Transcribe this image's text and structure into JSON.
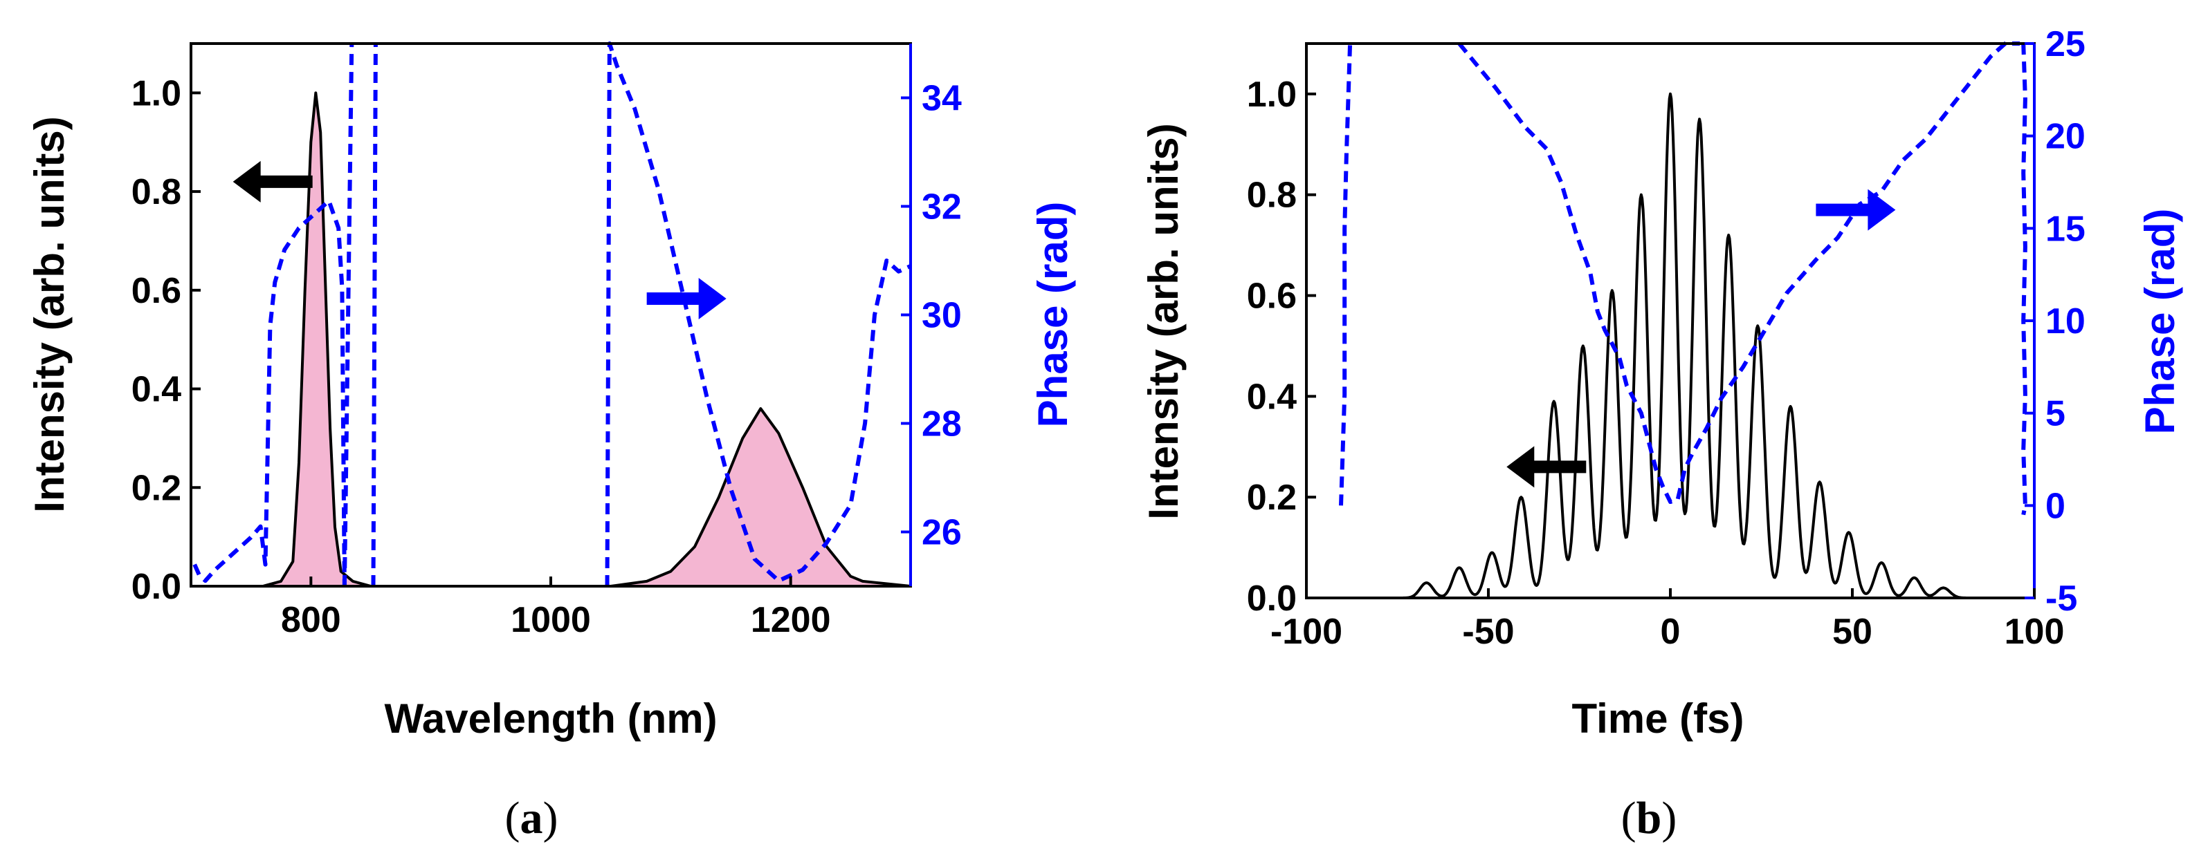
{
  "chart_data": [
    {
      "type": "line",
      "panel_label": "a",
      "xlabel": "Wavelength (nm)",
      "ylabel_left": "Intensity (arb. units)",
      "ylabel_right": "Phase (rad)",
      "xlim": [
        700,
        1300
      ],
      "ylim_left": [
        0,
        1.1
      ],
      "ylim_right": [
        25,
        35
      ],
      "xticks": [
        800,
        1000,
        1200
      ],
      "yticks_left": [
        "0.0",
        "0.2",
        "0.4",
        "0.6",
        "0.8",
        "1.0"
      ],
      "yticks_right": [
        "26",
        "28",
        "30",
        "32",
        "34"
      ],
      "arrows": [
        {
          "direction": "left",
          "color": "#000000",
          "x": 735,
          "y": 0.82,
          "axis": "left"
        },
        {
          "direction": "right",
          "color": "#0000ff",
          "x": 1080,
          "y": 30.3,
          "axis": "right"
        }
      ],
      "series": [
        {
          "name": "Intensity",
          "axis": "left",
          "style": "solid",
          "color": "#000000",
          "fill": "#f4b6d2",
          "x": [
            700,
            760,
            775,
            785,
            790,
            795,
            800,
            804,
            808,
            812,
            816,
            820,
            825,
            835,
            850,
            1050,
            1080,
            1100,
            1120,
            1140,
            1160,
            1175,
            1190,
            1210,
            1230,
            1250,
            1260,
            1300
          ],
          "y": [
            0,
            0,
            0.01,
            0.05,
            0.25,
            0.6,
            0.9,
            1.0,
            0.92,
            0.62,
            0.32,
            0.12,
            0.03,
            0.01,
            0,
            0,
            0.01,
            0.03,
            0.08,
            0.18,
            0.3,
            0.36,
            0.31,
            0.2,
            0.08,
            0.02,
            0.01,
            0
          ]
        },
        {
          "name": "Phase",
          "axis": "right",
          "style": "dashed",
          "color": "#0000ff",
          "segments": [
            {
              "x": [
                703,
                707,
                712,
                720,
                735,
                750,
                758,
                762,
                766,
                770,
                778,
                790,
                800,
                815,
                823,
                826,
                828
              ],
              "y": [
                25.4,
                25.2,
                25.1,
                25.3,
                25.6,
                25.9,
                26.1,
                25.4,
                29.8,
                30.6,
                31.2,
                31.6,
                31.8,
                32.1,
                31.6,
                30.5,
                25.0
              ]
            },
            {
              "x": [
                828,
                834
              ],
              "y": [
                25.0,
                35.0
              ]
            },
            {
              "x": [
                852,
                854
              ],
              "y": [
                25.0,
                35.0
              ]
            },
            {
              "x": [
                1047,
                1049,
                1055,
                1070,
                1090,
                1110,
                1130,
                1150,
                1170,
                1190,
                1210,
                1230,
                1250,
                1262,
                1270,
                1280,
                1290,
                1300
              ],
              "y": [
                25.0,
                35.0,
                34.6,
                33.8,
                32.3,
                30.4,
                28.5,
                26.8,
                25.5,
                25.1,
                25.3,
                25.8,
                26.5,
                28.0,
                30.0,
                31.0,
                30.8,
                30.9
              ]
            }
          ]
        }
      ]
    },
    {
      "type": "line",
      "panel_label": "b",
      "xlabel": "Time (fs)",
      "ylabel_left": "Intensity (arb. units)",
      "ylabel_right": "Phase (rad)",
      "xlim": [
        -100,
        100
      ],
      "ylim_left": [
        0,
        1.1
      ],
      "ylim_right": [
        -5,
        25
      ],
      "xticks": [
        "-100",
        "-50",
        "0",
        "50",
        "100"
      ],
      "yticks_left": [
        "0.0",
        "0.2",
        "0.4",
        "0.6",
        "0.8",
        "1.0"
      ],
      "yticks_right": [
        "-5",
        "0",
        "5",
        "10",
        "15",
        "20",
        "25"
      ],
      "arrows": [
        {
          "direction": "left",
          "color": "#000000",
          "x": -45,
          "y": 0.26,
          "axis": "left"
        },
        {
          "direction": "right",
          "color": "#0000ff",
          "x": 40,
          "y": 16,
          "axis": "right"
        }
      ],
      "series": [
        {
          "name": "Intensity",
          "axis": "left",
          "style": "solid",
          "color": "#000000",
          "peaks": {
            "t": [
              -67,
              -58,
              -49,
              -41,
              -32,
              -24,
              -16,
              -8,
              0,
              8,
              16,
              24,
              33,
              41,
              49,
              58,
              67,
              75
            ],
            "amp": [
              0.03,
              0.06,
              0.09,
              0.2,
              0.39,
              0.5,
              0.61,
              0.8,
              1.0,
              0.95,
              0.72,
              0.54,
              0.38,
              0.23,
              0.13,
              0.07,
              0.04,
              0.02
            ],
            "period": 8.2
          },
          "tail_range": [
            -85,
            85
          ]
        },
        {
          "name": "Phase",
          "axis": "right",
          "style": "dashed",
          "color": "#0000ff",
          "segments": [
            {
              "x": [
                -90.5,
                -89.5,
                -89.5,
                -89.5,
                -89,
                -88.5,
                -88
              ],
              "y": [
                0,
                6,
                11,
                15,
                19,
                22,
                25
              ]
            },
            {
              "x": [
                -58,
                -48,
                -40,
                -34,
                -30,
                -26,
                -22,
                -20,
                -18,
                -14,
                -12,
                -8,
                -6,
                -4,
                -2,
                0,
                2,
                4,
                6,
                8,
                10,
                14,
                20,
                26,
                32,
                40,
                46,
                52,
                58,
                64,
                70,
                76,
                82,
                88,
                92,
                96
              ],
              "y": [
                25,
                22.6,
                20.5,
                19.3,
                17.5,
                14.8,
                12.6,
                10.5,
                9.5,
                8.0,
                6.5,
                5.0,
                3.5,
                2.0,
                1.0,
                0.2,
                0.3,
                2.0,
                2.8,
                3.5,
                4.2,
                5.8,
                7.5,
                9.5,
                11.5,
                13.3,
                14.5,
                16.3,
                17.0,
                18.7,
                19.8,
                21.3,
                22.8,
                24.3,
                25.0,
                25.0
              ]
            },
            {
              "x": [
                97,
                97.5,
                97,
                97.5,
                97,
                97.5,
                97,
                97.5,
                97
              ],
              "y": [
                25,
                22,
                18,
                14,
                10,
                6,
                3,
                0,
                -0.5
              ]
            }
          ]
        }
      ]
    }
  ]
}
